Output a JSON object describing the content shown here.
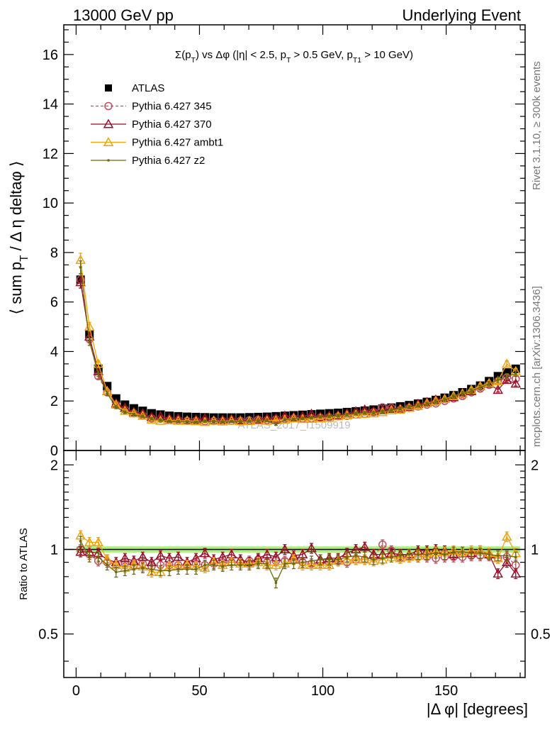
{
  "header": {
    "left": "13000 GeV pp",
    "right": "Underlying Event"
  },
  "side_labels": {
    "rivet": "Rivet 3.1.10, ≥ 300k events",
    "mcplots": "mcplots.cern.ch [arXiv:1306.3436]"
  },
  "watermark": "ATLAS_2017_I1509919",
  "chart_data": [
    {
      "type": "scatter",
      "panel": "main",
      "title": "Σ(p_T) vs Δφ (|η| < 2.5, p_T > 0.5 GeV, p_T1 > 10 GeV)",
      "ylabel": "⟨ sum p_T / Δ η deltaφ ⟩",
      "xlabel": "",
      "xlim": [
        -5,
        182
      ],
      "ylim": [
        0,
        17.2
      ],
      "yticks": [
        "0",
        "2",
        "4",
        "6",
        "8",
        "10",
        "12",
        "14",
        "16"
      ],
      "legend_placement": "top-left",
      "x": [
        1.8,
        5.4,
        9,
        12.6,
        16.2,
        19.8,
        23.4,
        27,
        30.6,
        34.2,
        37.8,
        41.4,
        45,
        48.6,
        52.2,
        55.8,
        59.4,
        63,
        66.6,
        70.2,
        73.8,
        77.4,
        81,
        84.6,
        88.2,
        91.8,
        95.4,
        99,
        102.6,
        106.2,
        109.8,
        113.4,
        117,
        120.6,
        124.2,
        127.8,
        131.4,
        135,
        138.6,
        142.2,
        145.8,
        149.4,
        153,
        156.6,
        160.2,
        163.8,
        167.4,
        171,
        174.6,
        178.2
      ],
      "series": [
        {
          "name": "ATLAS",
          "style": "data",
          "color": "#000000",
          "values": [
            6.9,
            4.7,
            3.3,
            2.6,
            2.1,
            1.85,
            1.7,
            1.6,
            1.5,
            1.45,
            1.4,
            1.38,
            1.36,
            1.35,
            1.34,
            1.33,
            1.33,
            1.33,
            1.33,
            1.34,
            1.35,
            1.36,
            1.38,
            1.4,
            1.42,
            1.44,
            1.46,
            1.48,
            1.5,
            1.52,
            1.55,
            1.58,
            1.61,
            1.65,
            1.69,
            1.73,
            1.78,
            1.83,
            1.89,
            1.96,
            2.04,
            2.13,
            2.23,
            2.35,
            2.48,
            2.62,
            2.8,
            3.0,
            3.15,
            3.3
          ]
        },
        {
          "name": "Pythia 6.427 345",
          "style": "dashed-circle",
          "color": "#c24d5e",
          "values": [
            6.9,
            4.5,
            3.0,
            2.35,
            1.85,
            1.65,
            1.5,
            1.42,
            1.3,
            1.28,
            1.23,
            1.22,
            1.2,
            1.2,
            1.18,
            1.19,
            1.19,
            1.2,
            1.2,
            1.22,
            1.24,
            1.23,
            1.26,
            1.28,
            1.3,
            1.29,
            1.3,
            1.33,
            1.35,
            1.38,
            1.4,
            1.45,
            1.48,
            1.55,
            1.75,
            1.72,
            1.65,
            1.72,
            1.78,
            1.85,
            1.9,
            2.0,
            2.1,
            2.2,
            2.35,
            2.5,
            2.65,
            2.8,
            2.95,
            2.9
          ]
        },
        {
          "name": "Pythia 6.427 370",
          "style": "solid-triangle",
          "color": "#9b0d27",
          "values": [
            6.8,
            4.6,
            3.2,
            2.4,
            1.9,
            1.72,
            1.55,
            1.5,
            1.35,
            1.38,
            1.3,
            1.3,
            1.22,
            1.25,
            1.3,
            1.22,
            1.25,
            1.28,
            1.23,
            1.2,
            1.25,
            1.3,
            1.3,
            1.4,
            1.35,
            1.38,
            1.48,
            1.36,
            1.4,
            1.42,
            1.5,
            1.58,
            1.65,
            1.58,
            1.62,
            1.68,
            1.7,
            1.75,
            1.88,
            1.95,
            2.05,
            2.1,
            2.15,
            2.3,
            2.4,
            2.6,
            2.7,
            2.45,
            2.85,
            2.7
          ]
        },
        {
          "name": "Pythia 6.427 ambt1",
          "style": "solid-triangle",
          "color": "#f0a30a",
          "values": [
            7.7,
            5.0,
            3.5,
            2.4,
            1.85,
            1.6,
            1.5,
            1.4,
            1.25,
            1.2,
            1.22,
            1.2,
            1.2,
            1.18,
            1.15,
            1.2,
            1.17,
            1.2,
            1.18,
            1.19,
            1.21,
            1.2,
            1.22,
            1.25,
            1.3,
            1.27,
            1.28,
            1.3,
            1.32,
            1.38,
            1.42,
            1.45,
            1.48,
            1.5,
            1.55,
            1.62,
            1.65,
            1.72,
            1.8,
            1.9,
            2.0,
            2.08,
            2.2,
            2.3,
            2.45,
            2.6,
            2.72,
            2.8,
            3.5,
            3.2
          ]
        },
        {
          "name": "Pythia 6.427 z2",
          "style": "solid-dot",
          "color": "#6b6b0a",
          "values": [
            7.4,
            4.4,
            3.1,
            2.3,
            1.75,
            1.55,
            1.45,
            1.38,
            1.28,
            1.22,
            1.18,
            1.17,
            1.16,
            1.15,
            1.18,
            1.17,
            1.16,
            1.17,
            1.17,
            1.18,
            1.2,
            1.21,
            1.05,
            1.24,
            1.27,
            1.3,
            1.33,
            1.36,
            1.38,
            1.4,
            1.45,
            1.5,
            1.52,
            1.52,
            1.57,
            1.63,
            1.7,
            1.75,
            1.82,
            1.88,
            1.98,
            2.05,
            2.18,
            2.3,
            2.4,
            2.55,
            2.7,
            2.85,
            3.0,
            3.1
          ]
        }
      ]
    },
    {
      "type": "scatter",
      "panel": "ratio",
      "ylabel": "Ratio to ATLAS",
      "xlabel": "|Δ φ| [degrees]",
      "xlim": [
        -5,
        182
      ],
      "ylim": [
        0.35,
        2.25
      ],
      "yscale": "log",
      "yticks": [
        "0.5",
        "1",
        "2"
      ],
      "xticks": [
        "0",
        "50",
        "100",
        "150"
      ],
      "band": {
        "name": "ATLAS",
        "color": "#aaf07c",
        "lower": 0.975,
        "upper": 1.025
      },
      "x": [
        1.8,
        5.4,
        9,
        12.6,
        16.2,
        19.8,
        23.4,
        27,
        30.6,
        34.2,
        37.8,
        41.4,
        45,
        48.6,
        52.2,
        55.8,
        59.4,
        63,
        66.6,
        70.2,
        73.8,
        77.4,
        81,
        84.6,
        88.2,
        91.8,
        95.4,
        99,
        102.6,
        106.2,
        109.8,
        113.4,
        117,
        120.6,
        124.2,
        127.8,
        131.4,
        135,
        138.6,
        142.2,
        145.8,
        149.4,
        153,
        156.6,
        160.2,
        163.8,
        167.4,
        171,
        174.6,
        178.2
      ],
      "series": [
        {
          "name": "Pythia 6.427 345",
          "style": "dashed-circle",
          "color": "#c24d5e",
          "values": [
            1.0,
            0.96,
            0.91,
            0.9,
            0.88,
            0.89,
            0.88,
            0.89,
            0.87,
            0.88,
            0.88,
            0.88,
            0.88,
            0.89,
            0.88,
            0.89,
            0.9,
            0.9,
            0.9,
            0.91,
            0.92,
            0.9,
            0.91,
            0.91,
            0.92,
            0.9,
            0.89,
            0.9,
            0.9,
            0.91,
            0.9,
            0.92,
            0.92,
            0.94,
            1.04,
            0.99,
            0.93,
            0.94,
            0.94,
            0.94,
            0.93,
            0.94,
            0.94,
            0.94,
            0.95,
            0.95,
            0.95,
            0.93,
            0.94,
            0.88
          ]
        },
        {
          "name": "Pythia 6.427 370",
          "style": "solid-triangle",
          "color": "#9b0d27",
          "values": [
            0.98,
            0.98,
            0.97,
            0.92,
            0.9,
            0.93,
            0.91,
            0.94,
            0.9,
            0.95,
            0.93,
            0.94,
            0.9,
            0.93,
            0.97,
            0.92,
            0.94,
            0.96,
            0.92,
            0.9,
            0.93,
            0.96,
            0.94,
            1.0,
            0.95,
            0.96,
            1.01,
            0.92,
            0.93,
            0.93,
            0.97,
            1.0,
            1.02,
            0.96,
            0.96,
            0.97,
            0.96,
            0.96,
            0.99,
            0.99,
            1.0,
            0.99,
            0.96,
            0.98,
            0.97,
            0.99,
            0.96,
            0.82,
            0.9,
            0.82
          ]
        },
        {
          "name": "Pythia 6.427 ambt1",
          "style": "solid-triangle",
          "color": "#f0a30a",
          "values": [
            1.12,
            1.06,
            1.06,
            0.92,
            0.88,
            0.86,
            0.88,
            0.87,
            0.83,
            0.83,
            0.87,
            0.87,
            0.88,
            0.87,
            0.86,
            0.9,
            0.88,
            0.9,
            0.89,
            0.89,
            0.9,
            0.88,
            0.88,
            0.89,
            0.92,
            0.88,
            0.88,
            0.88,
            0.88,
            0.91,
            0.92,
            0.92,
            0.92,
            0.91,
            0.92,
            0.94,
            0.93,
            0.94,
            0.95,
            0.97,
            0.98,
            0.98,
            0.99,
            0.98,
            0.99,
            0.99,
            0.97,
            0.93,
            1.11,
            0.97
          ]
        },
        {
          "name": "Pythia 6.427 z2",
          "style": "solid-dot",
          "color": "#6b6b0a",
          "values": [
            1.07,
            0.94,
            0.94,
            0.88,
            0.83,
            0.84,
            0.85,
            0.86,
            0.85,
            0.84,
            0.84,
            0.85,
            0.85,
            0.85,
            0.88,
            0.88,
            0.87,
            0.88,
            0.88,
            0.88,
            0.89,
            0.89,
            0.76,
            0.89,
            0.89,
            0.9,
            0.91,
            0.92,
            0.92,
            0.92,
            0.94,
            0.95,
            0.94,
            0.92,
            0.93,
            0.94,
            0.95,
            0.96,
            0.96,
            0.96,
            0.97,
            0.96,
            0.98,
            0.98,
            0.97,
            0.97,
            0.96,
            0.95,
            0.95,
            0.94
          ]
        }
      ]
    }
  ]
}
